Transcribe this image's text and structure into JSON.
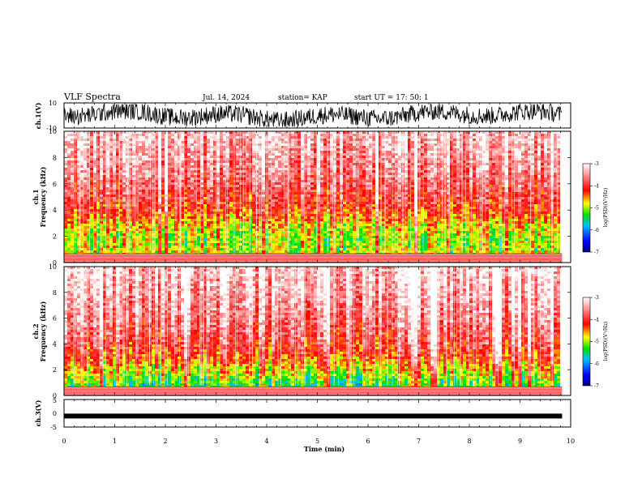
{
  "header": {
    "title": "VLF Spectra",
    "date": "Jul. 14, 2024",
    "station": "station= KAP",
    "start": "start  UT  =   17: 50: 1"
  },
  "chart_data": [
    {
      "type": "line",
      "name": "ch1-waveform",
      "ylabel": "ch.1(V)",
      "ylim": [
        -10,
        10
      ],
      "yticks": [
        "10",
        "-10"
      ],
      "xlim": [
        0,
        10
      ]
    },
    {
      "type": "heatmap",
      "name": "ch1-spectrogram",
      "ylabel": "ch.1\nFrequency  (kHz)",
      "ylabel_top": "ch.1",
      "ylabel_bottom": "Frequency  (kHz)",
      "ylim": [
        0,
        10
      ],
      "yticks": [
        "0",
        "2",
        "4",
        "6",
        "8",
        "10"
      ],
      "xlim": [
        0,
        10
      ],
      "data_end_min": 9.83,
      "colorbar": {
        "label": "log(PSD)(V²/Hz)",
        "range": [
          -7,
          -3
        ],
        "ticks": [
          "-3",
          "-4",
          "-5",
          "-6",
          "-7"
        ]
      },
      "band_profile": [
        {
          "f_khz": 1.0,
          "level": -4.9
        },
        {
          "f_khz": 2.0,
          "level": -5.0
        },
        {
          "f_khz": 3.0,
          "level": -4.7
        },
        {
          "f_khz": 4.0,
          "level": -4.2
        },
        {
          "f_khz": 5.0,
          "level": -4.0
        },
        {
          "f_khz": 7.0,
          "level": -3.6
        },
        {
          "f_khz": 10.0,
          "level": -3.3
        }
      ]
    },
    {
      "type": "heatmap",
      "name": "ch2-spectrogram",
      "ylabel": "ch.2\nFrequency  (kHz)",
      "ylabel_top": "ch.2",
      "ylabel_bottom": "Frequency  (kHz)",
      "ylim": [
        0,
        10
      ],
      "yticks": [
        "0",
        "2",
        "4",
        "6",
        "8",
        "10"
      ],
      "xlim": [
        0,
        10
      ],
      "data_end_min": 9.83,
      "colorbar": {
        "label": "log(PSD)(V²/Hz)",
        "range": [
          -7,
          -3
        ],
        "ticks": [
          "-3",
          "-4",
          "-5",
          "-6",
          "-7"
        ]
      },
      "band_profile": [
        {
          "f_khz": 1.0,
          "level": -5.3
        },
        {
          "f_khz": 2.0,
          "level": -4.8
        },
        {
          "f_khz": 3.0,
          "level": -4.3
        },
        {
          "f_khz": 4.0,
          "level": -4.0
        },
        {
          "f_khz": 5.0,
          "level": -3.8
        },
        {
          "f_khz": 7.0,
          "level": -3.5
        },
        {
          "f_khz": 10.0,
          "level": -3.2
        }
      ]
    },
    {
      "type": "line",
      "name": "ch3-waveform",
      "ylabel": "ch.3(V)",
      "ylim": [
        -5,
        5
      ],
      "yticks": [
        "5",
        "0",
        "-5"
      ],
      "xlim": [
        0,
        10
      ],
      "xlabel": "Time  (min)",
      "xticks": [
        "0",
        "1",
        "2",
        "3",
        "4",
        "5",
        "6",
        "7",
        "8",
        "9",
        "10"
      ],
      "approx_level_v": -1.0
    }
  ],
  "colors": {
    "low": "#000080",
    "mid_low": "#00c0ff",
    "mid": "#00e000",
    "mid_high": "#ffff00",
    "high": "#ff0000",
    "top": "#ffffff"
  }
}
